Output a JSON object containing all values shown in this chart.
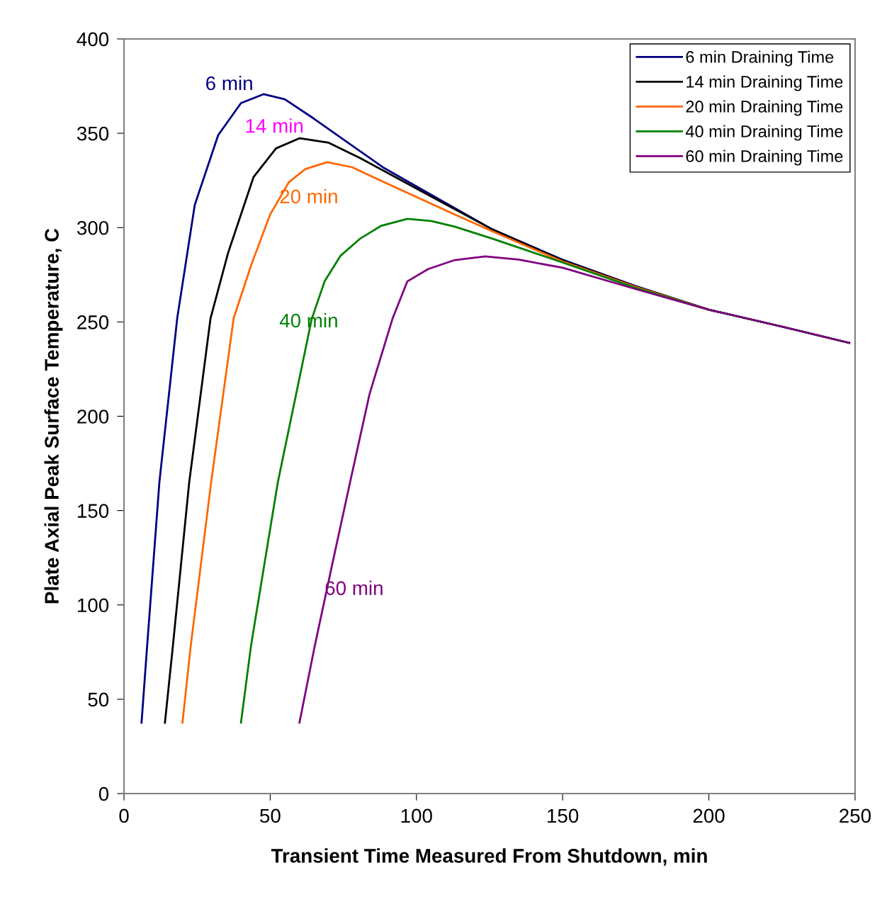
{
  "chart_data": {
    "type": "line",
    "xlabel": "Transient Time Measured From Shutdown, min",
    "ylabel": "Plate Axial Peak Surface Temperature, C",
    "xlim": [
      0,
      250
    ],
    "xticks": [
      0,
      50,
      100,
      150,
      200,
      250
    ],
    "ylim": [
      0,
      400
    ],
    "yticks": [
      0,
      50,
      100,
      150,
      200,
      250,
      300,
      350,
      400
    ],
    "grid": false,
    "legend": "top right",
    "marker": "none",
    "line_style": "solid",
    "series": [
      {
        "name": "6 min Draining Time",
        "color": "#000080",
        "x": [
          6,
          7.9,
          12.1,
          18.2,
          24.2,
          32.2,
          40,
          47.7,
          55,
          64.7,
          88.9,
          126,
          150,
          175,
          200,
          225,
          248
        ],
        "values": [
          37.6,
          78,
          165,
          252,
          312,
          349,
          366,
          370.7,
          368,
          358,
          331.6,
          299,
          283,
          269,
          256.5,
          247.5,
          238.9
        ]
      },
      {
        "name": "14 min Draining Time",
        "color": "#000000",
        "x": [
          14,
          16.7,
          22.3,
          29.6,
          35.6,
          44.3,
          52,
          60.1,
          70,
          80.7,
          104.9,
          126,
          150,
          175,
          200,
          225,
          248
        ],
        "values": [
          37.6,
          78,
          165,
          252,
          286.6,
          326.8,
          342,
          347.4,
          345,
          336.9,
          316.6,
          299,
          282.5,
          268.8,
          256.5,
          247.5,
          238.9
        ]
      },
      {
        "name": "20 min Draining Time",
        "color": "#ff6600",
        "x": [
          20,
          22.8,
          29.8,
          37.5,
          43.6,
          50,
          56.4,
          62,
          69.5,
          78,
          88.9,
          113.1,
          126,
          150,
          175,
          200
        ],
        "values": [
          37.6,
          78,
          165,
          252,
          280.6,
          307,
          324.1,
          331,
          334.7,
          332,
          324.1,
          306.9,
          298,
          282,
          268.5,
          256.5
        ]
      },
      {
        "name": "40 min Draining Time",
        "color": "#008000",
        "x": [
          40,
          43.4,
          52.6,
          64.2,
          68.6,
          74,
          80.7,
          88,
          96.9,
          105,
          113.1,
          126,
          150,
          175,
          200,
          225,
          248
        ],
        "values": [
          37.6,
          78,
          165,
          251.6,
          271.5,
          285,
          294.1,
          301,
          304.6,
          303.5,
          300.5,
          294.1,
          281.5,
          268,
          256.5,
          247.5,
          238.9
        ]
      },
      {
        "name": "60 min Draining Time",
        "color": "#800080",
        "x": [
          60,
          65.2,
          71,
          77.3,
          84,
          91.8,
          96.9,
          104,
          113.1,
          123.5,
          135,
          150,
          175,
          200,
          225,
          248
        ],
        "values": [
          37.6,
          78,
          120,
          165,
          212,
          251.6,
          271.5,
          278,
          282.8,
          284.7,
          283,
          278.7,
          267.4,
          256.5,
          247.5,
          238.9
        ]
      }
    ],
    "annotations": [
      "6 min",
      "14 min",
      "20 min",
      "40 min",
      "60 min"
    ]
  }
}
